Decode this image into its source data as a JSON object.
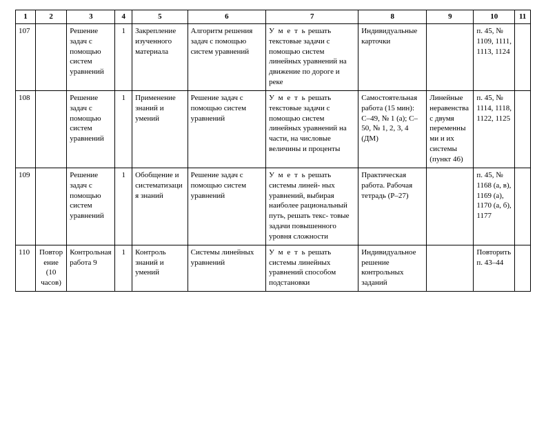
{
  "columns": [
    "1",
    "2",
    "3",
    "4",
    "5",
    "6",
    "7",
    "8",
    "9",
    "10",
    "11"
  ],
  "rows": [
    {
      "c1": "107",
      "c2": "",
      "c3": "Решение задач с помощью систем уравнений",
      "c4": "1",
      "c5": "Закрепление изученного материала",
      "c6": "Алгоритм решения задач с помощью систем уравнений",
      "c7_pre": "У м е т ь",
      "c7_rest": " решать текстовые задачи с помощью систем линейных уравнений на движение по дороге и реке",
      "c8": "Индивидуальные карточки",
      "c9": "",
      "c10": "п. 45, № 1109, 1111, 1113, 1124",
      "c11": ""
    },
    {
      "c1": "108",
      "c2": "",
      "c3": "Решение задач с помощью систем уравнений",
      "c4": "1",
      "c5": "Применение знаний и умений",
      "c6": "Решение задач с помощью систем уравнений",
      "c7_pre": "У м е т ь",
      "c7_rest": " решать текстовые задачи с помощью систем линейных уравнений на части, на числовые величины и проценты",
      "c8": "Самостоятельная работа (15 мин): С–49, № 1 (а); С–50, № 1, 2, 3, 4 (ДМ)",
      "c9": "Линейные неравенства с двумя переменными и их системы (пункт 46)",
      "c10": "п. 45, № 1114, 1118, 1122, 1125",
      "c11": ""
    },
    {
      "c1": "109",
      "c2": "",
      "c3": "Решение задач с помощью систем уравнений",
      "c4": "1",
      "c5": "Обобщение и систематизация знаний",
      "c6": "Решение задач с помощью систем уравнений",
      "c7_pre": "У м е т ь",
      "c7_rest": " решать системы линей- ных уравнений, выбирая наиболее рациональный путь, решать текс- товые задачи повышенного уровня сложности",
      "c8": "Практическая работа. Рабочая тетрадь (Р–27)",
      "c9": "",
      "c10": "п. 45, № 1168 (а, в), 1169 (а), 1170 (а, б), 1177",
      "c11": ""
    },
    {
      "c1": "110",
      "c2": "Повторение (10 часов)",
      "c3": "Контрольная работа 9",
      "c4": "1",
      "c5": "Контроль знаний и умений",
      "c6": "Системы линейных уравнений",
      "c7_pre": "У м е т ь",
      "c7_rest": " решать системы линейных уравнений способом подстановки",
      "c8": "Индивидуальное решение контрольных заданий",
      "c9": "",
      "c10": "Повторить п. 43–44",
      "c11": ""
    }
  ]
}
